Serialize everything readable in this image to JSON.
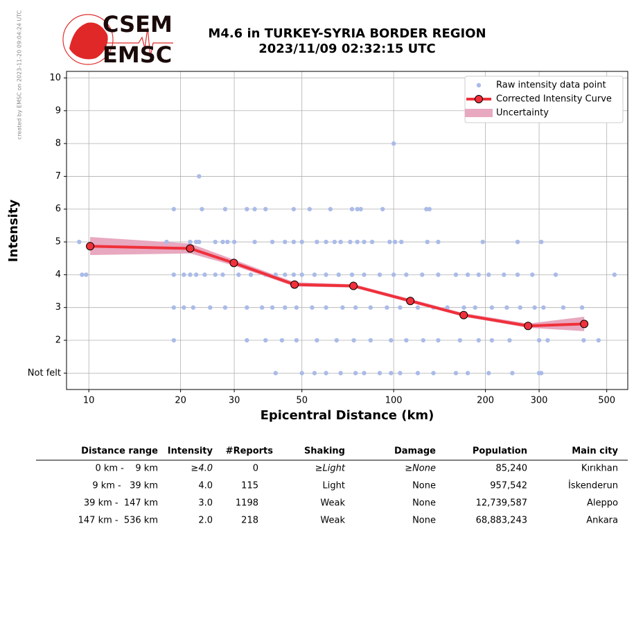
{
  "watermark": "created by EMSC on 2023-11-20 09:04:24 UTC",
  "logo": {
    "top": "CSEM",
    "bottom": "EMSC"
  },
  "chart_data": {
    "type": "scatter",
    "title": "M4.6 in TURKEY-SYRIA BORDER REGION",
    "subtitle": "2023/11/09 02:32:15 UTC",
    "x_label": "Epicentral Distance (km)",
    "y_label": "Intensity",
    "xscale": "log",
    "grid": true,
    "legend": "upper right",
    "xlim": [
      8.45,
      586
    ],
    "ylim": [
      0.5,
      10.2
    ],
    "xticks": [
      10,
      20,
      30,
      50,
      100,
      200,
      300,
      500
    ],
    "yticks": [
      {
        "value": 1,
        "label": "Not felt"
      },
      2,
      3,
      4,
      5,
      6,
      7,
      8,
      9,
      10
    ],
    "series": [
      {
        "name": "Raw intensity data point",
        "type": "scatter",
        "color": "#aabbe8",
        "x": [
          100,
          23,
          19,
          23.5,
          28,
          33,
          35,
          38,
          47,
          53,
          62,
          73,
          76,
          78,
          92,
          128,
          131,
          9.3,
          18,
          21.5,
          22.5,
          23,
          26,
          27.5,
          28.5,
          30,
          35,
          40,
          44,
          47,
          50,
          56,
          60,
          64,
          67,
          72,
          76,
          80,
          85,
          97,
          101,
          106,
          129,
          140,
          196,
          255,
          305,
          9.5,
          9.8,
          19,
          20.5,
          21.5,
          22.5,
          24,
          26,
          27.5,
          31,
          34,
          38,
          41,
          44,
          47,
          50,
          55,
          60,
          66,
          73,
          80,
          90,
          100,
          110,
          124,
          140,
          160,
          175,
          190,
          205,
          230,
          255,
          285,
          340,
          530,
          19,
          20.5,
          22,
          25,
          28,
          33,
          37,
          40,
          44,
          48,
          54,
          60,
          68,
          75,
          84,
          95,
          105,
          120,
          135,
          150,
          170,
          185,
          210,
          235,
          260,
          290,
          310,
          360,
          415,
          19,
          33,
          38,
          43,
          48,
          56,
          65,
          74,
          84,
          98,
          110,
          125,
          140,
          165,
          190,
          210,
          240,
          300,
          320,
          420,
          470,
          41,
          50,
          55,
          60,
          67,
          75,
          80,
          90,
          98,
          105,
          120,
          135,
          160,
          175,
          205,
          245,
          300,
          305
        ],
        "y": [
          8,
          7,
          6,
          6,
          6,
          6,
          6,
          6,
          6,
          6,
          6,
          6,
          6,
          6,
          6,
          6,
          6,
          5,
          5,
          5,
          5,
          5,
          5,
          5,
          5,
          5,
          5,
          5,
          5,
          5,
          5,
          5,
          5,
          5,
          5,
          5,
          5,
          5,
          5,
          5,
          5,
          5,
          5,
          5,
          5,
          5,
          5,
          4,
          4,
          4,
          4,
          4,
          4,
          4,
          4,
          4,
          4,
          4,
          4,
          4,
          4,
          4,
          4,
          4,
          4,
          4,
          4,
          4,
          4,
          4,
          4,
          4,
          4,
          4,
          4,
          4,
          4,
          4,
          4,
          4,
          4,
          4,
          3,
          3,
          3,
          3,
          3,
          3,
          3,
          3,
          3,
          3,
          3,
          3,
          3,
          3,
          3,
          3,
          3,
          3,
          3,
          3,
          3,
          3,
          3,
          3,
          3,
          3,
          3,
          3,
          3,
          2,
          2,
          2,
          2,
          2,
          2,
          2,
          2,
          2,
          2,
          2,
          2,
          2,
          2,
          2,
          2,
          2,
          2,
          2,
          2,
          2,
          1,
          1,
          1,
          1,
          1,
          1,
          1,
          1,
          1,
          1,
          1,
          1,
          1,
          1,
          1,
          1,
          1,
          1
        ]
      },
      {
        "name": "Corrected Intensity Curve",
        "type": "line",
        "color": "#f0303a",
        "x": [
          10.1,
          21.5,
          29.9,
          47.3,
          73.8,
          113.4,
          169.7,
          276,
          421.7
        ],
        "y": [
          4.87,
          4.8,
          4.36,
          3.7,
          3.66,
          3.2,
          2.77,
          2.44,
          2.5
        ]
      },
      {
        "name": "Uncertainty",
        "type": "band",
        "color": "#e8a8c0",
        "x": [
          10.1,
          21.5,
          29.9,
          47.3,
          73.8,
          113.4,
          169.7,
          276,
          421.7
        ],
        "lower": [
          4.6,
          4.65,
          4.28,
          3.64,
          3.61,
          3.15,
          2.72,
          2.38,
          2.28
        ],
        "upper": [
          5.15,
          4.95,
          4.46,
          3.77,
          3.71,
          3.26,
          2.83,
          2.51,
          2.72
        ]
      }
    ]
  },
  "table": {
    "header": [
      "Distance range",
      "Intensity",
      "#Reports",
      "Shaking",
      "Damage",
      "Population",
      "Main city"
    ],
    "rows": [
      [
        "0 km -    9 km",
        "≥4.0",
        "0",
        "≥Light",
        "≥None",
        "85,240",
        "Kırıkhan"
      ],
      [
        "9 km -   39 km",
        "4.0",
        "115",
        "Light",
        "None",
        "957,542",
        "İskenderun"
      ],
      [
        "39 km -  147 km",
        "3.0",
        "1198",
        "Weak",
        "None",
        "12,739,587",
        "Aleppo"
      ],
      [
        "147 km -  536 km",
        "2.0",
        "218",
        "Weak",
        "None",
        "68,883,243",
        "Ankara"
      ]
    ]
  }
}
